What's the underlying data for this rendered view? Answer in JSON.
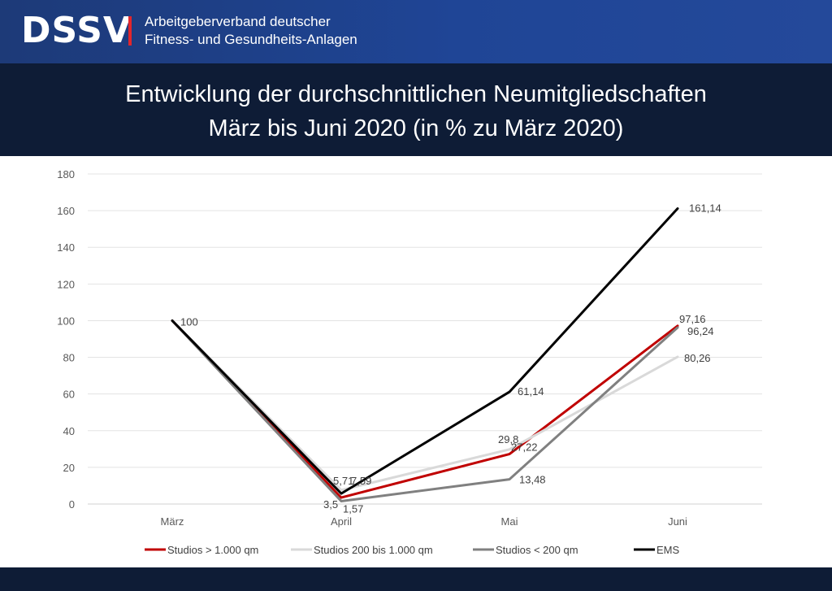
{
  "header": {
    "logo": "DSSV",
    "org_line1": "Arbeitgeberverband deutscher",
    "org_line2": "Fitness- und Gesundheits-Anlagen"
  },
  "title_line1": "Entwicklung der durchschnittlichen Neumitgliedschaften",
  "title_line2": "März bis Juni 2020 (in % zu März 2020)",
  "chart_data": {
    "type": "line",
    "categories": [
      "März",
      "April",
      "Mai",
      "Juni"
    ],
    "ylim": [
      0,
      180
    ],
    "yticks": [
      0,
      20,
      40,
      60,
      80,
      100,
      120,
      140,
      160,
      180
    ],
    "grid": true,
    "legend_position": "bottom",
    "series": [
      {
        "name": "Studios > 1.000 qm",
        "color": "#c00000",
        "values": [
          100,
          3.5,
          27.22,
          97.16
        ],
        "labels": [
          "",
          "3,5",
          "27,22",
          "97,16"
        ]
      },
      {
        "name": "Studios 200 bis 1.000 qm",
        "color": "#d9d9d9",
        "values": [
          100,
          7.59,
          29.8,
          80.26
        ],
        "labels": [
          "",
          "7,59",
          "29,8",
          "80,26"
        ]
      },
      {
        "name": "Studios < 200 qm",
        "color": "#808080",
        "values": [
          100,
          1.57,
          13.48,
          96.24
        ],
        "labels": [
          "",
          "1,57",
          "13,48",
          "96,24"
        ]
      },
      {
        "name": "EMS",
        "color": "#000000",
        "values": [
          100,
          5.71,
          61.14,
          161.14
        ],
        "labels": [
          "100",
          "5,71",
          "61,14",
          "161,14"
        ]
      }
    ]
  }
}
